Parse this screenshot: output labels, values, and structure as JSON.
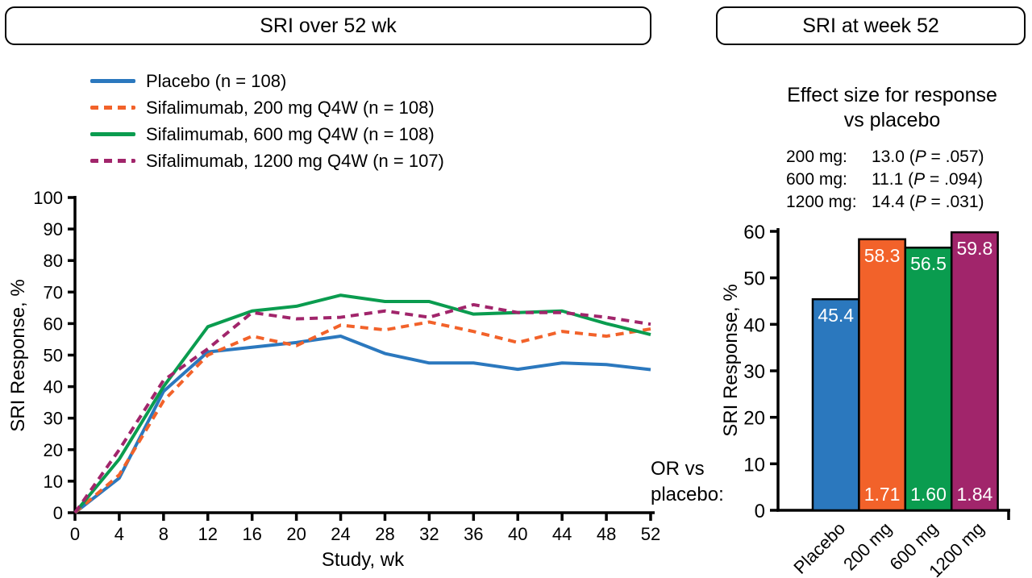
{
  "figure": {
    "left_panel_title": "SRI over 52 wk",
    "right_panel_title": "SRI at week 52"
  },
  "colors": {
    "placebo_blue": "#2B78BE",
    "dose200_orange": "#F2622A",
    "dose600_green": "#0A9C4F",
    "dose1200_purple": "#A1256B",
    "axis_black": "#000000",
    "bar_label_white": "#FFFFFF"
  },
  "chart_data": [
    {
      "type": "line",
      "panel_title": "SRI over 52 wk",
      "xlabel": "Study, wk",
      "ylabel": "SRI Response, %",
      "xlim": [
        0,
        52
      ],
      "ylim": [
        0,
        100
      ],
      "xticks": [
        0,
        4,
        8,
        12,
        16,
        20,
        24,
        28,
        32,
        36,
        40,
        44,
        48,
        52
      ],
      "yticks": [
        0,
        10,
        20,
        30,
        40,
        50,
        60,
        70,
        80,
        90,
        100
      ],
      "grid": false,
      "legend_position": "top-left",
      "x": [
        0,
        4,
        8,
        12,
        16,
        20,
        24,
        28,
        32,
        36,
        40,
        44,
        48,
        52
      ],
      "series": [
        {
          "key": "placebo",
          "name": "Placebo (n = 108)",
          "color": "#2B78BE",
          "style": "solid",
          "values": [
            0,
            11,
            38.5,
            51,
            52.5,
            54,
            56,
            50.5,
            47.5,
            47.5,
            45.5,
            47.5,
            47,
            45.4
          ]
        },
        {
          "key": "200mg",
          "name": "Sifalimumab, 200 mg Q4W (n = 108)",
          "color": "#F2622A",
          "style": "dashed",
          "values": [
            0,
            12,
            35.5,
            50,
            56,
            53,
            59.5,
            58,
            60.5,
            57.5,
            54,
            57.5,
            56,
            58.3
          ]
        },
        {
          "key": "600mg",
          "name": "Sifalimumab, 600 mg Q4W (n = 108)",
          "color": "#0A9C4F",
          "style": "solid",
          "values": [
            0,
            17,
            40,
            59,
            64,
            65.5,
            69,
            67,
            67,
            63,
            63.5,
            64,
            60,
            56.5
          ]
        },
        {
          "key": "1200mg",
          "name": "Sifalimumab, 1200 mg Q4W (n = 107)",
          "color": "#A1256B",
          "style": "dashed",
          "values": [
            0,
            20,
            42,
            52,
            63.5,
            61.5,
            62,
            64,
            62,
            66,
            63.5,
            63.5,
            62,
            59.8
          ]
        }
      ],
      "annotation_lines": [
        "OR vs",
        "placebo:"
      ]
    },
    {
      "type": "bar",
      "panel_title": "SRI at week 52",
      "title_lines": [
        "Effect size for response",
        "vs placebo"
      ],
      "effect_rows": [
        {
          "label": "200 mg:",
          "prefix": "13.0 (",
          "p": "P",
          "suffix": " = .057)"
        },
        {
          "label": "600 mg:",
          "prefix": "11.1 (",
          "p": "P",
          "suffix": " = .094)"
        },
        {
          "label": "1200 mg:",
          "prefix": "14.4 (",
          "p": "P",
          "suffix": " = .031)"
        }
      ],
      "ylabel": "SRI Response, %",
      "ylim": [
        0,
        60
      ],
      "yticks": [
        0,
        10,
        20,
        30,
        40,
        50,
        60
      ],
      "grid": false,
      "categories": [
        "Placebo",
        "200 mg",
        "600 mg",
        "1200 mg"
      ],
      "values": [
        45.4,
        58.3,
        56.5,
        59.8
      ],
      "bar_labels": [
        "45.4",
        "58.3",
        "56.5",
        "59.8"
      ],
      "or_values": [
        null,
        "1.71",
        "1.60",
        "1.84"
      ],
      "colors": [
        "#2B78BE",
        "#F2622A",
        "#0A9C4F",
        "#A1256B"
      ]
    }
  ]
}
